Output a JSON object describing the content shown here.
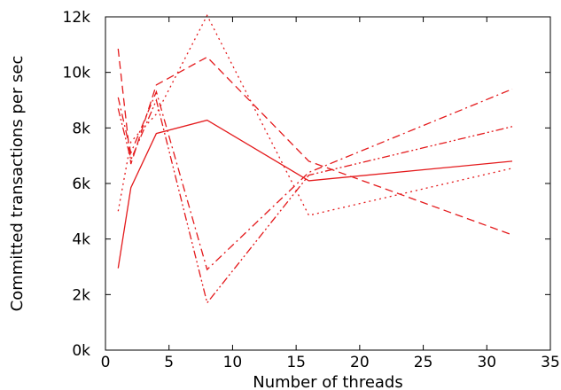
{
  "chart_data": {
    "type": "line",
    "title": "",
    "xlabel": "Number of threads",
    "ylabel": "Committed transactions per sec",
    "xlim": [
      0,
      35
    ],
    "ylim": [
      0,
      12000
    ],
    "x_ticks": [
      0,
      5,
      10,
      15,
      20,
      25,
      30,
      35
    ],
    "x_tick_labels": [
      "0",
      "5",
      "10",
      "15",
      "20",
      "25",
      "30",
      "35"
    ],
    "y_ticks": [
      0,
      2000,
      4000,
      6000,
      8000,
      10000,
      12000
    ],
    "y_tick_labels": [
      "0k",
      "2k",
      "4k",
      "6k",
      "8k",
      "10k",
      "12k"
    ],
    "grid": false,
    "legend": "none",
    "color": "#e41a1c",
    "x": [
      1,
      2,
      4,
      8,
      16,
      32
    ],
    "series": [
      {
        "dash": "solid",
        "values": [
          2950,
          5850,
          7800,
          8280,
          6100,
          6800
        ]
      },
      {
        "dash": "dashed",
        "values": [
          10850,
          6700,
          9550,
          10550,
          6800,
          4150
        ]
      },
      {
        "dash": "dotted",
        "values": [
          5000,
          7500,
          8500,
          12050,
          4850,
          6550
        ]
      },
      {
        "dash": "dashdot",
        "values": [
          9100,
          7100,
          9300,
          2900,
          6400,
          9400
        ]
      },
      {
        "dash": "dashdotdot",
        "values": [
          8700,
          6850,
          9000,
          1700,
          6300,
          8050
        ]
      }
    ]
  }
}
